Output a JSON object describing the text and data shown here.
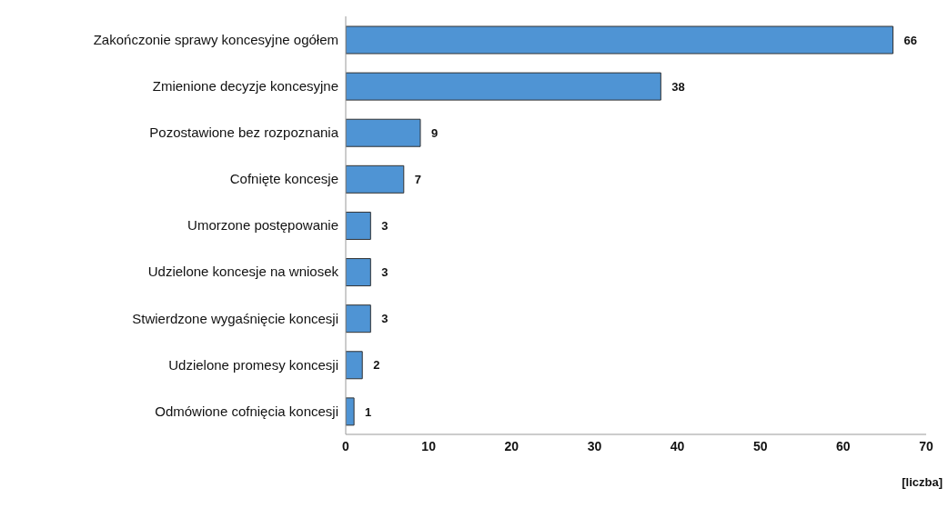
{
  "chart_data": {
    "type": "bar",
    "orientation": "horizontal",
    "categories": [
      "Zakończonie sprawy koncesyjne ogółem",
      "Zmienione decyzje koncesyjne",
      "Pozostawione bez rozpoznania",
      "Cofnięte koncesje",
      "Umorzone postępowanie",
      "Udzielone koncesje na wniosek",
      "Stwierdzone wygaśnięcie koncesji",
      "Udzielone promesy koncesji",
      "Odmówione cofnięcia koncesji"
    ],
    "values": [
      66,
      38,
      9,
      7,
      3,
      3,
      3,
      2,
      1
    ],
    "color": "#4f94d4",
    "xlim": [
      0,
      70
    ],
    "xticks": [
      0,
      10,
      20,
      30,
      40,
      50,
      60,
      70
    ],
    "xlabel": "[liczba]",
    "data_labels": true
  }
}
